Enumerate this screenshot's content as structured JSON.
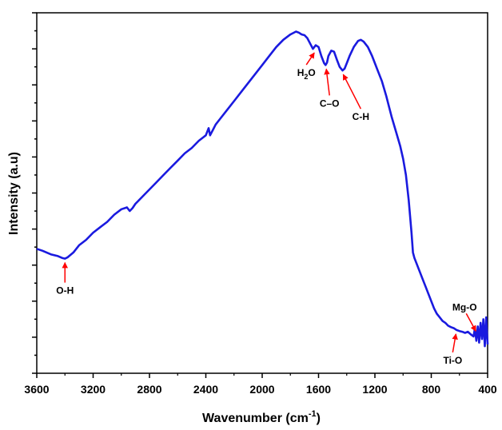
{
  "chart_data": {
    "type": "line",
    "title": "",
    "xlabel": "Wavenumber (cm",
    "xlabel_sup": "-1",
    "xlabel_tail": ")",
    "ylabel": "Intensity (a.u)",
    "xlim": [
      3600,
      400
    ],
    "x_reversed": true,
    "ylim": [
      0,
      1
    ],
    "y_tick_labels_visible": false,
    "x_ticks": [
      3600,
      3200,
      2800,
      2400,
      2000,
      1600,
      1200,
      800,
      400
    ],
    "x_tick_labels": [
      "3600",
      "3200",
      "2800",
      "2400",
      "2000",
      "1600",
      "1200",
      "800",
      "400"
    ],
    "grid": false,
    "series": [
      {
        "color": "#1a1adf",
        "x": [
          3600,
          3560,
          3500,
          3450,
          3420,
          3400,
          3380,
          3340,
          3300,
          3250,
          3200,
          3150,
          3100,
          3050,
          3000,
          2960,
          2940,
          2920,
          2900,
          2850,
          2800,
          2750,
          2700,
          2650,
          2600,
          2550,
          2500,
          2450,
          2400,
          2380,
          2370,
          2350,
          2330,
          2300,
          2250,
          2200,
          2150,
          2100,
          2050,
          2000,
          1950,
          1900,
          1850,
          1800,
          1760,
          1740,
          1720,
          1700,
          1680,
          1660,
          1640,
          1620,
          1600,
          1580,
          1560,
          1550,
          1540,
          1530,
          1510,
          1490,
          1470,
          1450,
          1430,
          1415,
          1400,
          1380,
          1350,
          1320,
          1300,
          1280,
          1250,
          1220,
          1200,
          1180,
          1150,
          1120,
          1100,
          1080,
          1050,
          1020,
          1000,
          980,
          960,
          940,
          930,
          920,
          900,
          880,
          860,
          840,
          820,
          800,
          780,
          760,
          740,
          720,
          700,
          680,
          660,
          640,
          620,
          600,
          580,
          560,
          540,
          520,
          500,
          490,
          480,
          470,
          460,
          450,
          440,
          430,
          420,
          410,
          400
        ],
        "y": [
          0.345,
          0.34,
          0.33,
          0.325,
          0.32,
          0.318,
          0.322,
          0.335,
          0.355,
          0.37,
          0.39,
          0.405,
          0.42,
          0.44,
          0.455,
          0.46,
          0.45,
          0.458,
          0.47,
          0.49,
          0.51,
          0.53,
          0.55,
          0.57,
          0.59,
          0.61,
          0.625,
          0.645,
          0.66,
          0.68,
          0.66,
          0.675,
          0.69,
          0.705,
          0.73,
          0.755,
          0.78,
          0.805,
          0.83,
          0.855,
          0.88,
          0.905,
          0.925,
          0.94,
          0.948,
          0.945,
          0.94,
          0.938,
          0.93,
          0.915,
          0.9,
          0.91,
          0.905,
          0.88,
          0.86,
          0.855,
          0.862,
          0.88,
          0.895,
          0.892,
          0.87,
          0.85,
          0.84,
          0.845,
          0.86,
          0.88,
          0.905,
          0.922,
          0.925,
          0.92,
          0.905,
          0.88,
          0.86,
          0.84,
          0.81,
          0.77,
          0.74,
          0.71,
          0.67,
          0.63,
          0.595,
          0.55,
          0.48,
          0.39,
          0.335,
          0.32,
          0.3,
          0.28,
          0.26,
          0.24,
          0.22,
          0.2,
          0.18,
          0.165,
          0.155,
          0.145,
          0.14,
          0.132,
          0.128,
          0.125,
          0.12,
          0.117,
          0.115,
          0.112,
          0.115,
          0.108,
          0.102,
          0.125,
          0.09,
          0.13,
          0.085,
          0.14,
          0.095,
          0.15,
          0.075,
          0.155,
          0.08
        ]
      }
    ],
    "annotations": [
      {
        "label": "O-H",
        "x": 3400,
        "y": 0.318
      },
      {
        "label": "H",
        "sub": "2",
        "tail": "O",
        "x": 1630,
        "y": 0.9
      },
      {
        "label": "C–O",
        "x": 1545,
        "y": 0.855
      },
      {
        "label": "C-H",
        "x": 1425,
        "y": 0.84
      },
      {
        "label": "Ti-O",
        "x": 625,
        "y": 0.12
      },
      {
        "label": "Mg-O",
        "x": 495,
        "y": 0.108
      }
    ],
    "arrow_color": "#ff0000"
  }
}
